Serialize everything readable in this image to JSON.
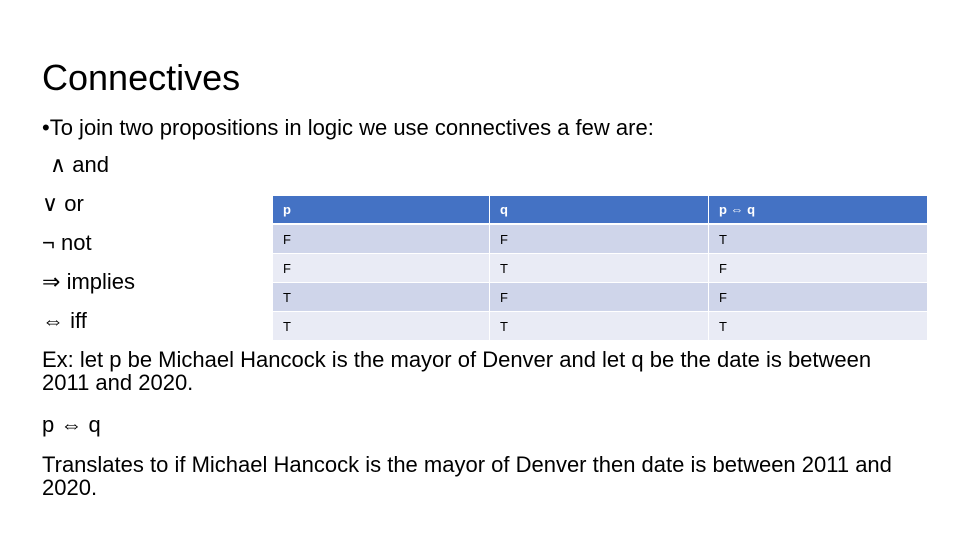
{
  "slide": {
    "title": "Connectives",
    "intro": "•To join two propositions in logic we use connectives a few are:",
    "connectives": [
      {
        "symbol": "∧",
        "label": "and"
      },
      {
        "symbol": "∨",
        "label": "or"
      },
      {
        "symbol": "¬",
        "label": "not"
      },
      {
        "symbol": "⇒",
        "label": "implies"
      },
      {
        "symbol": "⇔",
        "label": "iff"
      }
    ],
    "example": "Ex: let p be Michael Hancock is the mayor of Denver and let q be the date is between 2011 and 2020.",
    "expression": "p ⇔ q",
    "translation": "Translates to if Michael Hancock is the mayor of Denver then date is between 2011 and 2020."
  },
  "truth_table": {
    "headers": [
      "p",
      "q",
      "p ⇔ q"
    ],
    "rows": [
      [
        "F",
        "F",
        "T"
      ],
      [
        "F",
        "T",
        "F"
      ],
      [
        "T",
        "F",
        "F"
      ],
      [
        "T",
        "T",
        "T"
      ]
    ]
  }
}
